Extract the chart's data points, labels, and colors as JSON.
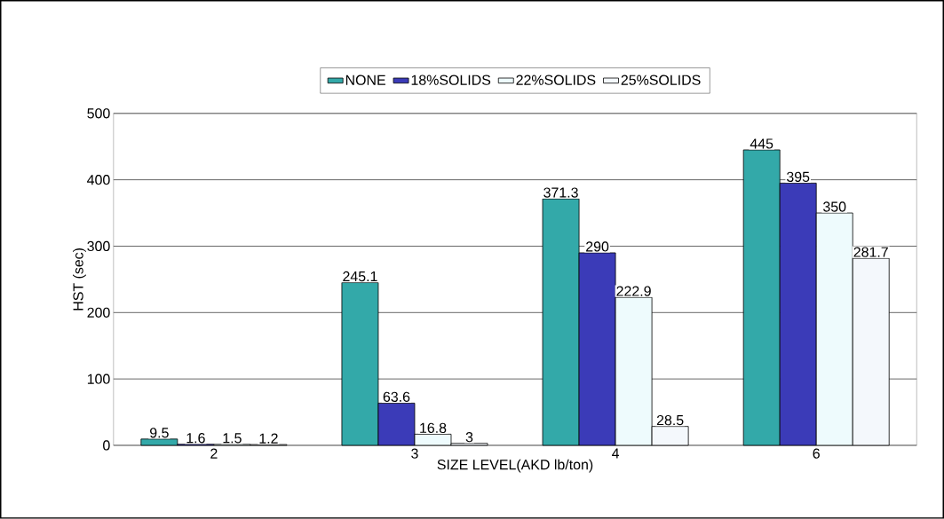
{
  "chart_data": {
    "type": "bar",
    "xlabel": "SIZE LEVEL(AKD lb/ton)",
    "ylabel": "HST (sec)",
    "categories": [
      "2",
      "3",
      "4",
      "6"
    ],
    "series": [
      {
        "name": "NONE",
        "color": "#33a9a9",
        "values": [
          9.5,
          245.1,
          371.3,
          445
        ]
      },
      {
        "name": "18%SOLIDS",
        "color": "#3b3bb8",
        "values": [
          1.6,
          63.6,
          290,
          395
        ]
      },
      {
        "name": "22%SOLIDS",
        "color": "#eefbfd",
        "values": [
          1.5,
          16.8,
          222.9,
          350
        ]
      },
      {
        "name": "25%SOLIDS",
        "color": "#f4f8fc",
        "values": [
          1.2,
          3,
          28.5,
          281.7
        ]
      }
    ],
    "ylim": [
      0,
      500
    ],
    "yticks": [
      0,
      100,
      200,
      300,
      400,
      500
    ],
    "grid": "y",
    "legend": "top",
    "data_labels": true
  }
}
